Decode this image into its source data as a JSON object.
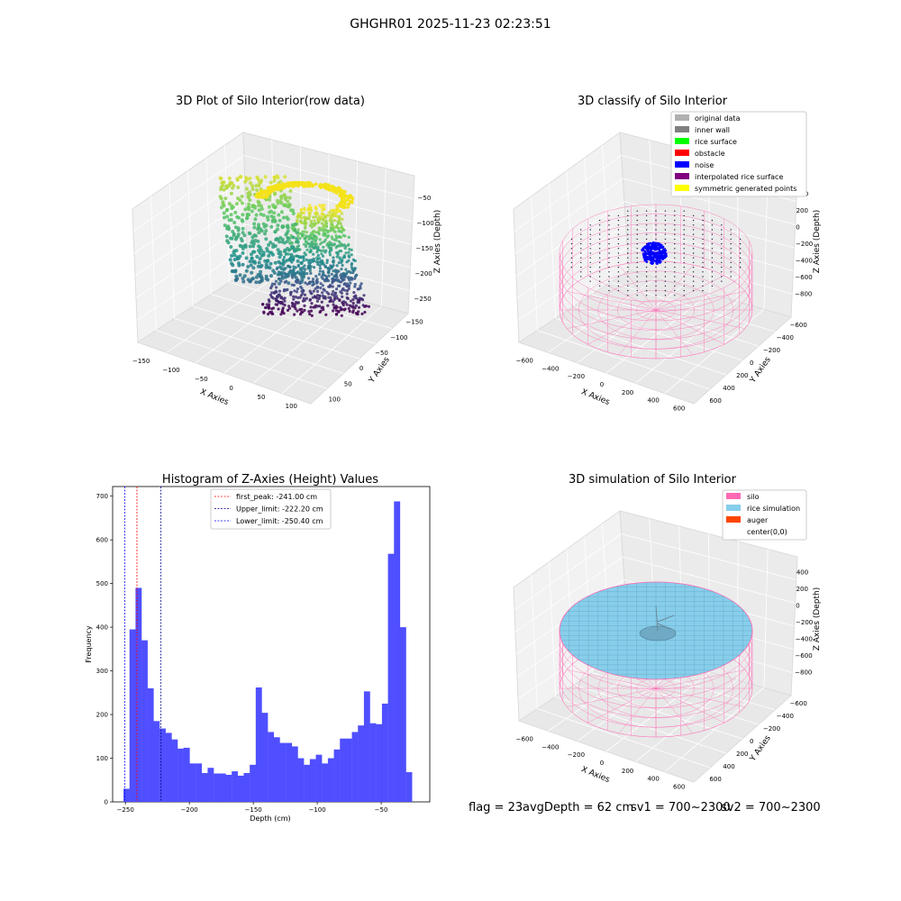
{
  "figure": {
    "suptitle": "GHGHR01 2025-11-23 02:23:51"
  },
  "colors": {
    "hist_bar": "#4f4fff",
    "first_peak": "#ff0000",
    "upper_limit": "#00008b",
    "lower_limit": "#0000ff",
    "silo": "#ff69b4",
    "rice_simulation": "#87ceeb",
    "auger": "#ff4500",
    "noise": "#0000ff"
  },
  "panels": {
    "raw": {
      "title": "3D Plot of Silo Interior(row data)",
      "xlabel": "X Axies",
      "ylabel": "Y Axies",
      "zlabel": "Z Axies (Depth)",
      "x_ticks": [
        "−150",
        "−100",
        "−50",
        "0",
        "50",
        "100"
      ],
      "y_ticks": [
        "−150",
        "−100",
        "−50",
        "0",
        "50",
        "100"
      ],
      "z_ticks": [
        "−50",
        "−100",
        "−150",
        "−200",
        "−250"
      ]
    },
    "classify": {
      "title": "3D classify of Silo Interior",
      "xlabel": "X Axies",
      "ylabel": "Y Axies",
      "zlabel": "Z Axies (Depth)",
      "x_ticks": [
        "−600",
        "−400",
        "−200",
        "0",
        "200",
        "400",
        "600"
      ],
      "y_ticks": [
        "−600",
        "−400",
        "−200",
        "0",
        "200",
        "400",
        "600"
      ],
      "z_ticks": [
        "400",
        "200",
        "0",
        "−200",
        "−400",
        "−600",
        "−800"
      ],
      "legend": [
        {
          "label": "original data",
          "color": "#b0b0b0"
        },
        {
          "label": "inner wall",
          "color": "#808080"
        },
        {
          "label": "rice surface",
          "color": "#00ff00"
        },
        {
          "label": "obstacle",
          "color": "#ff0000"
        },
        {
          "label": "noise",
          "color": "#0000ff"
        },
        {
          "label": "interpolated rice surface",
          "color": "#800080"
        },
        {
          "label": "symmetric generated points",
          "color": "#ffff00"
        }
      ]
    },
    "simulation": {
      "title": "3D simulation of Silo Interior",
      "xlabel": "X Axies",
      "ylabel": "Y Axies",
      "zlabel": "Z Axies (Depth)",
      "x_ticks": [
        "−600",
        "−400",
        "−200",
        "0",
        "200",
        "400",
        "600"
      ],
      "y_ticks": [
        "−600",
        "−400",
        "−200",
        "0",
        "200",
        "400",
        "600"
      ],
      "z_ticks": [
        "400",
        "200",
        "0",
        "−200",
        "−400",
        "−600",
        "−800"
      ],
      "legend": [
        {
          "label": "silo",
          "color": "#ff69b4"
        },
        {
          "label": "rice simulation",
          "color": "#87ceeb"
        },
        {
          "label": "auger",
          "color": "#ff4500"
        },
        {
          "label": "center(0,0)",
          "color": ""
        }
      ]
    }
  },
  "chart_data": {
    "type": "bar",
    "title": "Histogram of Z-Axies (Height) Values",
    "xlabel": "Depth (cm)",
    "ylabel": "Frequency",
    "xlim": [
      -260,
      -12
    ],
    "ylim": [
      0,
      722
    ],
    "x_ticks": [
      -250,
      -200,
      -150,
      -100,
      -50
    ],
    "x_tick_labels": [
      "−250",
      "−200",
      "−150",
      "−100",
      "−50"
    ],
    "y_ticks": [
      0,
      100,
      200,
      300,
      400,
      500,
      600,
      700
    ],
    "y_tick_labels": [
      "0",
      "100",
      "200",
      "300",
      "400",
      "500",
      "600",
      "700"
    ],
    "bin_start": -251.5,
    "bin_width": 4.7,
    "values": [
      30,
      395,
      490,
      370,
      260,
      185,
      168,
      158,
      143,
      122,
      124,
      88,
      88,
      66,
      78,
      65,
      65,
      62,
      70,
      60,
      66,
      85,
      262,
      204,
      160,
      148,
      135,
      135,
      127,
      100,
      85,
      98,
      108,
      88,
      100,
      120,
      145,
      145,
      160,
      175,
      253,
      180,
      178,
      225,
      568,
      688,
      400,
      68
    ],
    "vlines": [
      {
        "label": "first_peak: -241.00 cm",
        "x": -241.0,
        "color": "#ff0000"
      },
      {
        "label": "Upper_limit: -222.20 cm",
        "x": -222.2,
        "color": "#00008b"
      },
      {
        "label": "Lower_limit: -250.40 cm",
        "x": -250.4,
        "color": "#0000ff"
      }
    ],
    "legend_position": "upper center"
  },
  "footer": {
    "flag": "flag = 23",
    "avg_depth": "avgDepth = 62 cm",
    "sv1": "sv1 = 700~2300",
    "sv2": "sv2 = 700~2300"
  }
}
